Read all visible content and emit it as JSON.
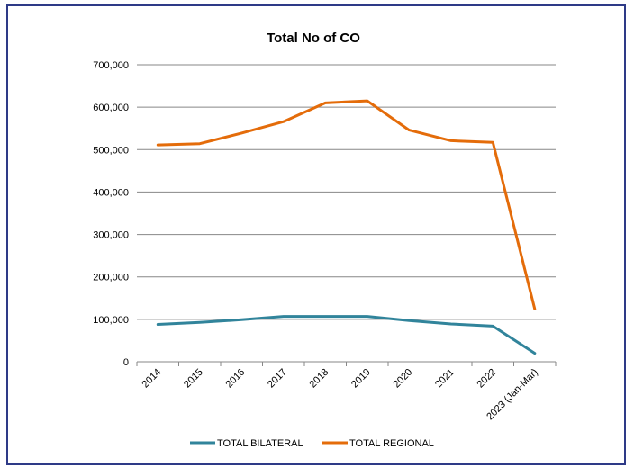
{
  "chart_data": {
    "type": "line",
    "title": "Total No of CO",
    "xlabel": "",
    "ylabel": "",
    "categories": [
      "2014",
      "2015",
      "2016",
      "2017",
      "2018",
      "2019",
      "2020",
      "2021",
      "2022",
      "2023 (Jan-Mar)"
    ],
    "ylim": [
      0,
      700000
    ],
    "y_ticks": [
      0,
      100000,
      200000,
      300000,
      400000,
      500000,
      600000,
      700000
    ],
    "y_tick_labels": [
      "0",
      "100,000",
      "200,000",
      "300,000",
      "400,000",
      "500,000",
      "600,000",
      "700,000"
    ],
    "grid": true,
    "legend_position": "bottom",
    "series": [
      {
        "name": "TOTAL BILATERAL",
        "color": "#31849b",
        "values": [
          88000,
          93000,
          99000,
          107000,
          107000,
          107000,
          97000,
          89000,
          84000,
          20000
        ]
      },
      {
        "name": "TOTAL REGIONAL",
        "color": "#e46c0a",
        "values": [
          511000,
          514000,
          539000,
          566000,
          610000,
          615000,
          546000,
          521000,
          517000,
          124000
        ]
      }
    ]
  }
}
